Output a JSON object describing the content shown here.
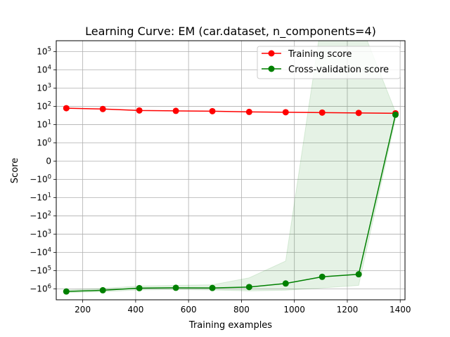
{
  "chart_data": {
    "type": "line",
    "title": "Learning Curve: EM (car.dataset, n_components=4)",
    "xlabel": "Training examples",
    "ylabel": "Score",
    "y_scale": "symlog",
    "xlim": [
      100,
      1418
    ],
    "ylim": [
      -4000000,
      400000
    ],
    "grid": true,
    "legend_position": "top-right",
    "x_ticks": [
      {
        "value": 200,
        "label": "200"
      },
      {
        "value": 400,
        "label": "400"
      },
      {
        "value": 600,
        "label": "600"
      },
      {
        "value": 800,
        "label": "800"
      },
      {
        "value": 1000,
        "label": "1000"
      },
      {
        "value": 1200,
        "label": "1200"
      },
      {
        "value": 1400,
        "label": "1400"
      }
    ],
    "y_ticks": [
      {
        "value": 100000,
        "label": "10",
        "exp": "5"
      },
      {
        "value": 10000,
        "label": "10",
        "exp": "4"
      },
      {
        "value": 1000,
        "label": "10",
        "exp": "3"
      },
      {
        "value": 100,
        "label": "10",
        "exp": "2"
      },
      {
        "value": 10,
        "label": "10",
        "exp": "1"
      },
      {
        "value": 1,
        "label": "10",
        "exp": "0"
      },
      {
        "value": 0,
        "label": "0",
        "exp": ""
      },
      {
        "value": -1,
        "label": "−10",
        "exp": "0"
      },
      {
        "value": -10,
        "label": "−10",
        "exp": "1"
      },
      {
        "value": -100,
        "label": "−10",
        "exp": "2"
      },
      {
        "value": -1000,
        "label": "−10",
        "exp": "3"
      },
      {
        "value": -10000,
        "label": "−10",
        "exp": "4"
      },
      {
        "value": -100000,
        "label": "−10",
        "exp": "5"
      },
      {
        "value": -1000000,
        "label": "−10",
        "exp": "6"
      }
    ],
    "x": [
      138,
      276,
      414,
      552,
      690,
      829,
      967,
      1105,
      1243,
      1382
    ],
    "series": [
      {
        "name": "Training score",
        "color": "#ff0000",
        "values": [
          80,
          72,
          60,
          57,
          55,
          50,
          48,
          46,
          44,
          42
        ]
      },
      {
        "name": "Cross-validation score",
        "color": "#008000",
        "values": [
          -1400000,
          -1200000,
          -920000,
          -880000,
          -900000,
          -800000,
          -510000,
          -220000,
          -160000,
          35
        ],
        "band_color": "#008000",
        "band_upper": [
          -1150000,
          -950000,
          -700000,
          -650000,
          -600000,
          -250000,
          -30000,
          8000000,
          6000000,
          50
        ],
        "band_lower": [
          -1600000,
          -1450000,
          -1150000,
          -1100000,
          -1150000,
          -1300000,
          -1200000,
          -900000,
          -650000,
          20
        ]
      }
    ]
  }
}
